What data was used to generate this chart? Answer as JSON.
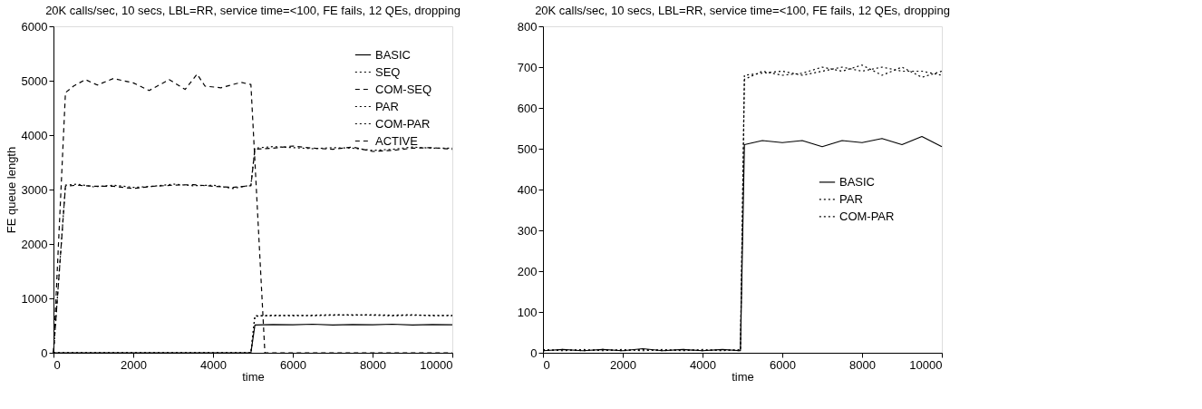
{
  "chart_data": [
    {
      "type": "line",
      "title": "20K calls/sec, 10 secs, LBL=RR, service time=<100, FE fails, 12 QEs, dropping",
      "xlabel": "time",
      "ylabel": "FE queue length",
      "xlim": [
        0,
        10000
      ],
      "xticks": [
        0,
        2000,
        4000,
        6000,
        8000,
        10000
      ],
      "ylim": [
        0,
        6000
      ],
      "yticks": [
        0,
        1000,
        2000,
        3000,
        4000,
        5000,
        6000
      ],
      "grid": false,
      "legend": "top right",
      "series": [
        {
          "name": "BASIC",
          "color": "#000000",
          "line_style": "solid",
          "x": [
            0,
            500,
            1000,
            1500,
            2000,
            2500,
            3000,
            3500,
            4000,
            4500,
            4950,
            5050,
            5500,
            6000,
            6500,
            7000,
            7500,
            8000,
            8500,
            9000,
            9500,
            10000
          ],
          "values": [
            0,
            0,
            0,
            0,
            0,
            0,
            0,
            0,
            0,
            0,
            0,
            510,
            520,
            515,
            525,
            510,
            520,
            515,
            525,
            510,
            520,
            515
          ]
        },
        {
          "name": "SEQ",
          "color": "#000000",
          "line_style": "dotted",
          "x": [
            0,
            300,
            600,
            1000,
            1500,
            2000,
            2500,
            3000,
            3500,
            4000,
            4500,
            4950,
            5050,
            5500,
            6000,
            6500,
            7000,
            7500,
            8000,
            8500,
            9000,
            9500,
            10000
          ],
          "values": [
            0,
            3080,
            3100,
            3050,
            3080,
            3040,
            3060,
            3100,
            3070,
            3080,
            3020,
            3080,
            3760,
            3790,
            3770,
            3750,
            3770,
            3760,
            3720,
            3740,
            3780,
            3760,
            3760
          ]
        },
        {
          "name": "COM-SEQ",
          "color": "#000000",
          "line_style": "dashed",
          "x": [
            0,
            300,
            600,
            1000,
            1500,
            2000,
            2500,
            3000,
            3500,
            4000,
            4500,
            4950,
            5050,
            5500,
            6000,
            6500,
            7000,
            7500,
            8000,
            8500,
            9000,
            9500,
            10000
          ],
          "values": [
            0,
            3060,
            3080,
            3060,
            3060,
            3020,
            3060,
            3080,
            3090,
            3060,
            3040,
            3070,
            3740,
            3760,
            3800,
            3760,
            3740,
            3780,
            3700,
            3720,
            3760,
            3770,
            3740
          ]
        },
        {
          "name": "PAR",
          "color": "#000000",
          "line_style": "dotted",
          "x": [
            0,
            500,
            1000,
            1500,
            2000,
            2500,
            3000,
            3500,
            4000,
            4500,
            4950,
            5050,
            5500,
            6000,
            6500,
            7000,
            7500,
            8000,
            8500,
            9000,
            9500,
            10000
          ],
          "values": [
            0,
            0,
            0,
            0,
            0,
            0,
            0,
            0,
            0,
            0,
            0,
            670,
            690,
            680,
            690,
            700,
            690,
            700,
            690,
            700,
            680,
            690
          ]
        },
        {
          "name": "COM-PAR",
          "color": "#000000",
          "line_style": "dotted",
          "x": [
            0,
            500,
            1000,
            1500,
            2000,
            2500,
            3000,
            3500,
            4000,
            4500,
            4950,
            5050,
            5500,
            6000,
            6500,
            7000,
            7500,
            8000,
            8500,
            9000,
            9500,
            10000
          ],
          "values": [
            0,
            0,
            0,
            0,
            0,
            0,
            0,
            0,
            0,
            0,
            0,
            680,
            680,
            690,
            680,
            690,
            700,
            690,
            680,
            690,
            690,
            680
          ]
        },
        {
          "name": "ACTIVE",
          "color": "#000000",
          "line_style": "dashed",
          "x": [
            0,
            300,
            500,
            800,
            1100,
            1500,
            2000,
            2400,
            2900,
            3300,
            3600,
            3800,
            4200,
            4700,
            4950,
            5300,
            6000,
            7000,
            8000,
            9000,
            10000
          ],
          "values": [
            0,
            4780,
            4900,
            5020,
            4920,
            5040,
            4960,
            4820,
            5020,
            4840,
            5120,
            4900,
            4870,
            4970,
            4930,
            0,
            0,
            0,
            0,
            0,
            0
          ]
        }
      ]
    },
    {
      "type": "line",
      "title": "20K calls/sec, 10 secs, LBL=RR, service time=<100, FE fails, 12 QEs, dropping",
      "xlabel": "time",
      "xlim": [
        0,
        10000
      ],
      "xticks": [
        0,
        2000,
        4000,
        6000,
        8000,
        10000
      ],
      "ylim": [
        0,
        800
      ],
      "yticks": [
        0,
        100,
        200,
        300,
        400,
        500,
        600,
        700,
        800
      ],
      "grid": false,
      "legend": "right",
      "series": [
        {
          "name": "BASIC",
          "color": "#000000",
          "line_style": "solid",
          "x": [
            0,
            500,
            1000,
            1500,
            2000,
            2500,
            3000,
            3500,
            4000,
            4500,
            4950,
            5050,
            5500,
            6000,
            6500,
            7000,
            7500,
            8000,
            8500,
            9000,
            9500,
            10000
          ],
          "values": [
            5,
            8,
            5,
            8,
            5,
            10,
            5,
            8,
            5,
            8,
            5,
            510,
            520,
            515,
            520,
            505,
            520,
            515,
            525,
            510,
            530,
            505
          ]
        },
        {
          "name": "PAR",
          "color": "#000000",
          "line_style": "dotted",
          "x": [
            0,
            500,
            1000,
            1500,
            2000,
            2500,
            3000,
            3500,
            4000,
            4500,
            4950,
            5050,
            5500,
            6000,
            6500,
            7000,
            7500,
            8000,
            8500,
            9000,
            9500,
            10000
          ],
          "values": [
            8,
            5,
            8,
            5,
            8,
            5,
            8,
            5,
            8,
            5,
            8,
            670,
            690,
            680,
            685,
            700,
            690,
            705,
            680,
            700,
            675,
            690
          ]
        },
        {
          "name": "COM-PAR",
          "color": "#000000",
          "line_style": "dotted",
          "x": [
            0,
            500,
            1000,
            1500,
            2000,
            2500,
            3000,
            3500,
            4000,
            4500,
            4950,
            5050,
            5500,
            6000,
            6500,
            7000,
            7500,
            8000,
            8500,
            9000,
            9500,
            10000
          ],
          "values": [
            5,
            8,
            5,
            8,
            5,
            8,
            5,
            8,
            5,
            8,
            5,
            680,
            685,
            690,
            680,
            690,
            700,
            690,
            700,
            690,
            690,
            680
          ]
        }
      ]
    }
  ]
}
